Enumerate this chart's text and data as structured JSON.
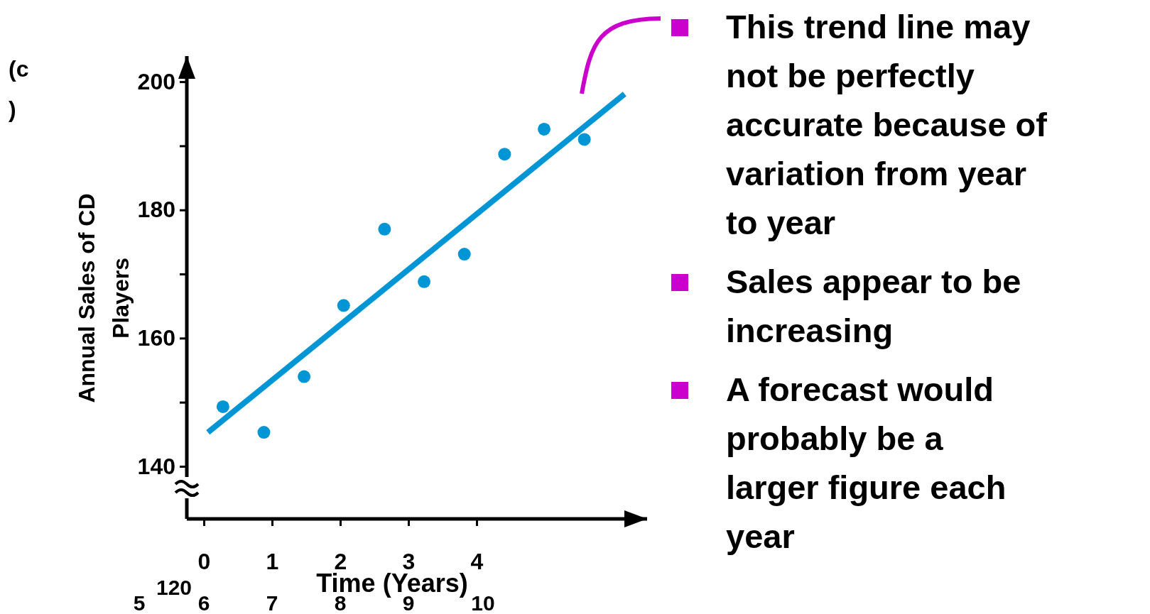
{
  "chart_data": {
    "type": "scatter",
    "xlabel": "Time (Years)",
    "ylabel": "Annual Sales of CD Players",
    "xlim": [
      -0.25,
      6.5
    ],
    "ylim": [
      131.8,
      204
    ],
    "xticks": [
      0,
      1,
      2,
      3,
      4
    ],
    "yticks": [
      140,
      {
        "value": 150,
        "label": null
      },
      160,
      {
        "value": 170,
        "label": null
      },
      180,
      {
        "value": 190,
        "label": null
      },
      200
    ],
    "grid": false,
    "series": [
      {
        "color": "#0096d6",
        "x": [
          0.28,
          0.88,
          1.47,
          2.05,
          2.65,
          3.23,
          3.82,
          4.41,
          4.99,
          5.58
        ],
        "values": [
          149.3,
          145.3,
          154,
          165.1,
          177,
          168.8,
          173.1,
          188.7,
          192.6,
          191
        ]
      },
      {
        "type": "line",
        "color": "#0096d6",
        "x": [
          0.06,
          6.17
        ],
        "values": [
          145.3,
          198.1
        ]
      }
    ],
    "annotations": [
      "(c\n)",
      "5",
      "120",
      "6",
      "7",
      "8",
      "9",
      "10",
      "This trend line may not be perfectly accurate because of variation from year to year",
      "Sales appear to be increasing",
      "A forecast would probably be a larger figure each year"
    ]
  }
}
